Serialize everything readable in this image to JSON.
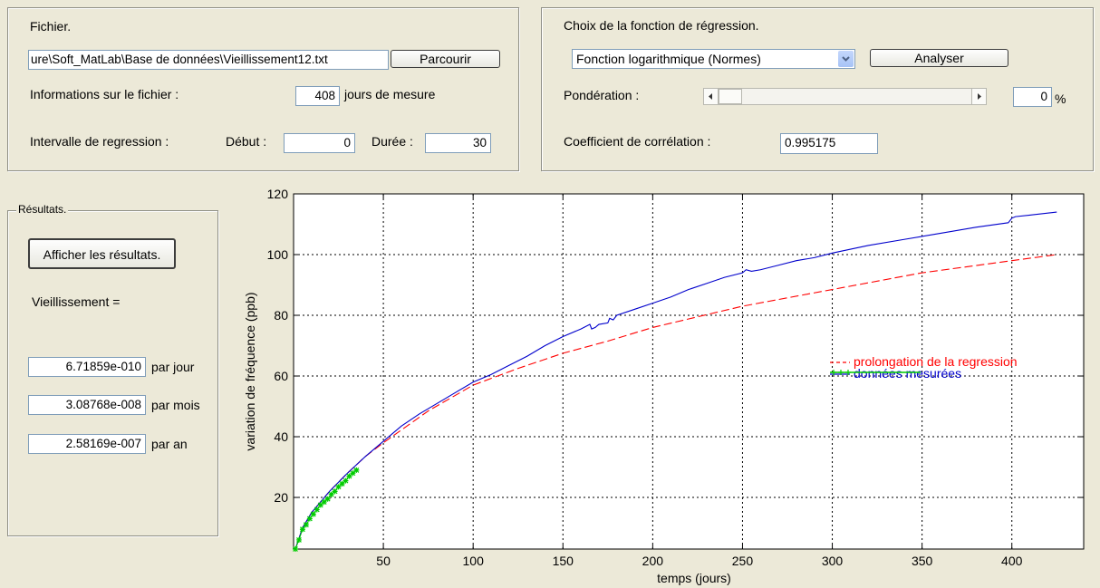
{
  "fichier": {
    "title": "Fichier.",
    "path_value": "ure\\Soft_MatLab\\Base de données\\Vieillissement12.txt",
    "browse_label": "Parcourir",
    "info_label": "Informations sur le fichier :",
    "days_value": "408",
    "days_unit": "jours de mesure",
    "interval_label": "Intervalle de regression :",
    "start_label": "Début :",
    "start_value": "0",
    "duration_label": "Durée :",
    "duration_value": "30"
  },
  "regression": {
    "title": "Choix de la fonction de régression.",
    "function_selected": "Fonction logarithmique (Normes)",
    "analyze_label": "Analyser",
    "weighting_label": "Pondération :",
    "weighting_value": "0",
    "weighting_unit": "%",
    "weighting_slider_fraction": 0,
    "corr_label": "Coefficient de corrélation :",
    "corr_value": "0.995175"
  },
  "results": {
    "title": "Résultats.",
    "show_label": "Afficher les résultats.",
    "aging_label": "Vieillissement  =",
    "rows": [
      {
        "value": "6.71859e-010",
        "unit": "par jour"
      },
      {
        "value": "3.08768e-008",
        "unit": "par mois"
      },
      {
        "value": "2.58169e-007",
        "unit": "par an"
      }
    ]
  },
  "chart_data": {
    "type": "line",
    "xlabel": "temps (jours)",
    "ylabel": "variation de fréquence (ppb)",
    "xlim": [
      0,
      440
    ],
    "ylim": [
      3,
      120
    ],
    "x_ticks": [
      50,
      100,
      150,
      200,
      250,
      300,
      350,
      400
    ],
    "y_ticks": [
      20,
      40,
      60,
      80,
      100,
      120
    ],
    "grid": true,
    "legend_position": "right",
    "series": [
      {
        "name": "prolongation de la regression",
        "color": "#ff0000",
        "style": "dashed",
        "x": [
          1,
          5,
          10,
          20,
          30,
          40,
          50,
          75,
          100,
          125,
          150,
          175,
          200,
          250,
          300,
          350,
          400,
          425
        ],
        "y": [
          3,
          10,
          15,
          22,
          28,
          33.5,
          38,
          48.5,
          57,
          62.5,
          67.5,
          71.5,
          76,
          83,
          88.5,
          94,
          98,
          100
        ]
      },
      {
        "name": "données mesurées",
        "color": "#0000cc",
        "style": "solid",
        "x": [
          1,
          5,
          10,
          20,
          30,
          40,
          50,
          60,
          70,
          80,
          90,
          100,
          110,
          120,
          130,
          140,
          150,
          160,
          165,
          166,
          168,
          170,
          175,
          176,
          178,
          180,
          190,
          200,
          210,
          220,
          230,
          240,
          250,
          252,
          255,
          260,
          270,
          280,
          290,
          300,
          320,
          340,
          360,
          380,
          398,
          400,
          402,
          410,
          425
        ],
        "y": [
          3,
          10,
          15,
          22,
          28,
          33.5,
          38.5,
          43.5,
          47.5,
          51,
          54.5,
          58,
          60.5,
          63.5,
          66.5,
          70,
          73,
          75.5,
          77,
          75.5,
          76,
          77,
          77.5,
          79,
          78.5,
          80,
          82,
          84,
          86,
          88.5,
          90.5,
          92.5,
          94,
          95,
          94.5,
          95,
          96.5,
          98,
          99,
          100.5,
          103,
          105,
          107,
          109,
          110.5,
          112,
          112.5,
          113,
          114
        ]
      },
      {
        "name": "",
        "color": "#00cc00",
        "style": "markers",
        "x": [
          1,
          3,
          5,
          7,
          9,
          11,
          13,
          15,
          17,
          19,
          21,
          23,
          25,
          27,
          29,
          31,
          33,
          35
        ],
        "y": [
          3,
          6,
          9.5,
          11,
          13,
          14.5,
          16,
          17.5,
          18.5,
          19.5,
          21,
          22,
          23.5,
          24.5,
          25.5,
          27,
          28,
          29
        ]
      }
    ]
  }
}
